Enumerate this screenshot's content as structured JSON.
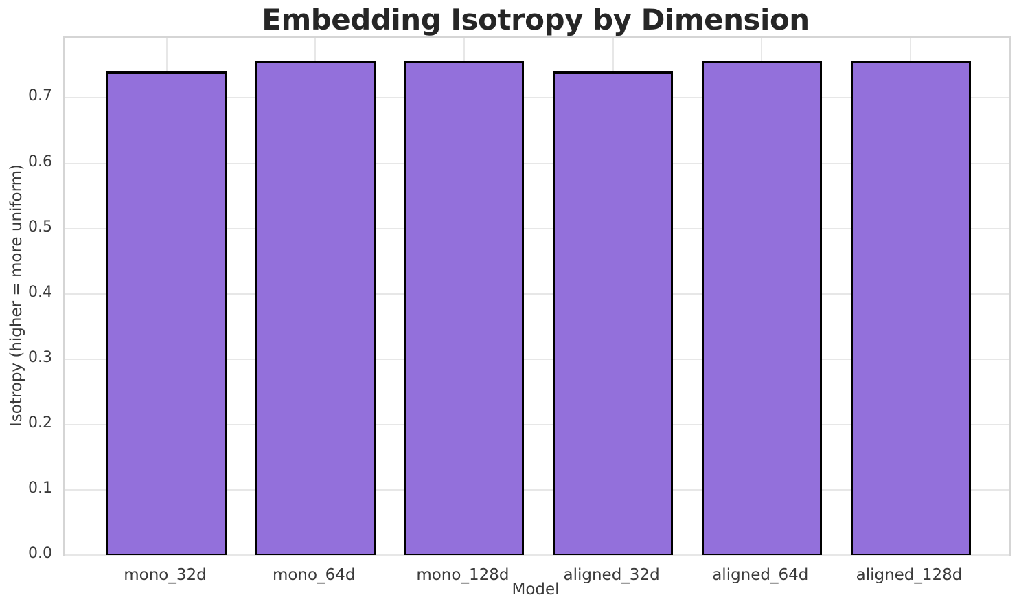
{
  "chart_data": {
    "type": "bar",
    "title": "Embedding Isotropy by Dimension",
    "xlabel": "Model",
    "ylabel": "Isotropy (higher = more uniform)",
    "categories": [
      "mono_32d",
      "mono_64d",
      "mono_128d",
      "aligned_32d",
      "aligned_64d",
      "aligned_128d"
    ],
    "values": [
      0.74,
      0.756,
      0.756,
      0.74,
      0.756,
      0.756
    ],
    "yticks": [
      0.0,
      0.1,
      0.2,
      0.3,
      0.4,
      0.5,
      0.6,
      0.7
    ],
    "ylim": [
      0,
      0.792
    ],
    "grid": true,
    "legend": null,
    "colors": {
      "bar_fill": "#9370DB",
      "bar_edge": "#000000",
      "grid": "#e7e7e7",
      "spine": "#d5d5d5",
      "text": "#3a3a3a",
      "title": "#262626",
      "background": "#ffffff"
    }
  }
}
